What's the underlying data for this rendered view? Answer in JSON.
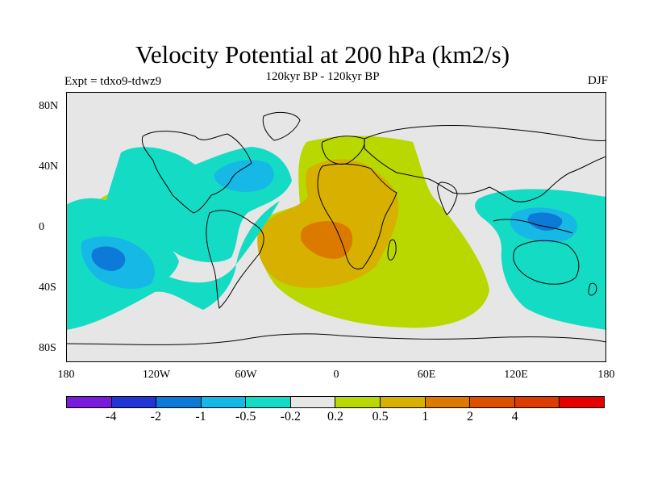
{
  "title": "Velocity Potential at 200 hPa (km2/s)",
  "subtitle": "120kyr BP - 120kyr BP",
  "experiment": "Expt = tdxo9-tdwz9",
  "season": "DJF",
  "map": {
    "projection": "cylindrical equidistant",
    "lon_range": [
      -180,
      180
    ],
    "lat_range": [
      -90,
      90
    ],
    "y_ticks": [
      "80N",
      "40N",
      "0",
      "40S",
      "80S"
    ],
    "x_ticks": [
      "180",
      "120W",
      "60W",
      "0",
      "60E",
      "120E",
      "180"
    ],
    "background_color": "#e6e6e6"
  },
  "colorbar": {
    "colors": [
      "#7a1adc",
      "#2234d6",
      "#0d7ad8",
      "#16b8e6",
      "#14dcc4",
      "#e6e6e6",
      "#b8d800",
      "#d8b000",
      "#dc7a00",
      "#dc5000",
      "#dc3c00",
      "#e60000"
    ],
    "labels": [
      "-4",
      "-2",
      "-1",
      "-0.5",
      "-0.2",
      "0.2",
      "0.5",
      "1",
      "2",
      "4"
    ]
  }
}
